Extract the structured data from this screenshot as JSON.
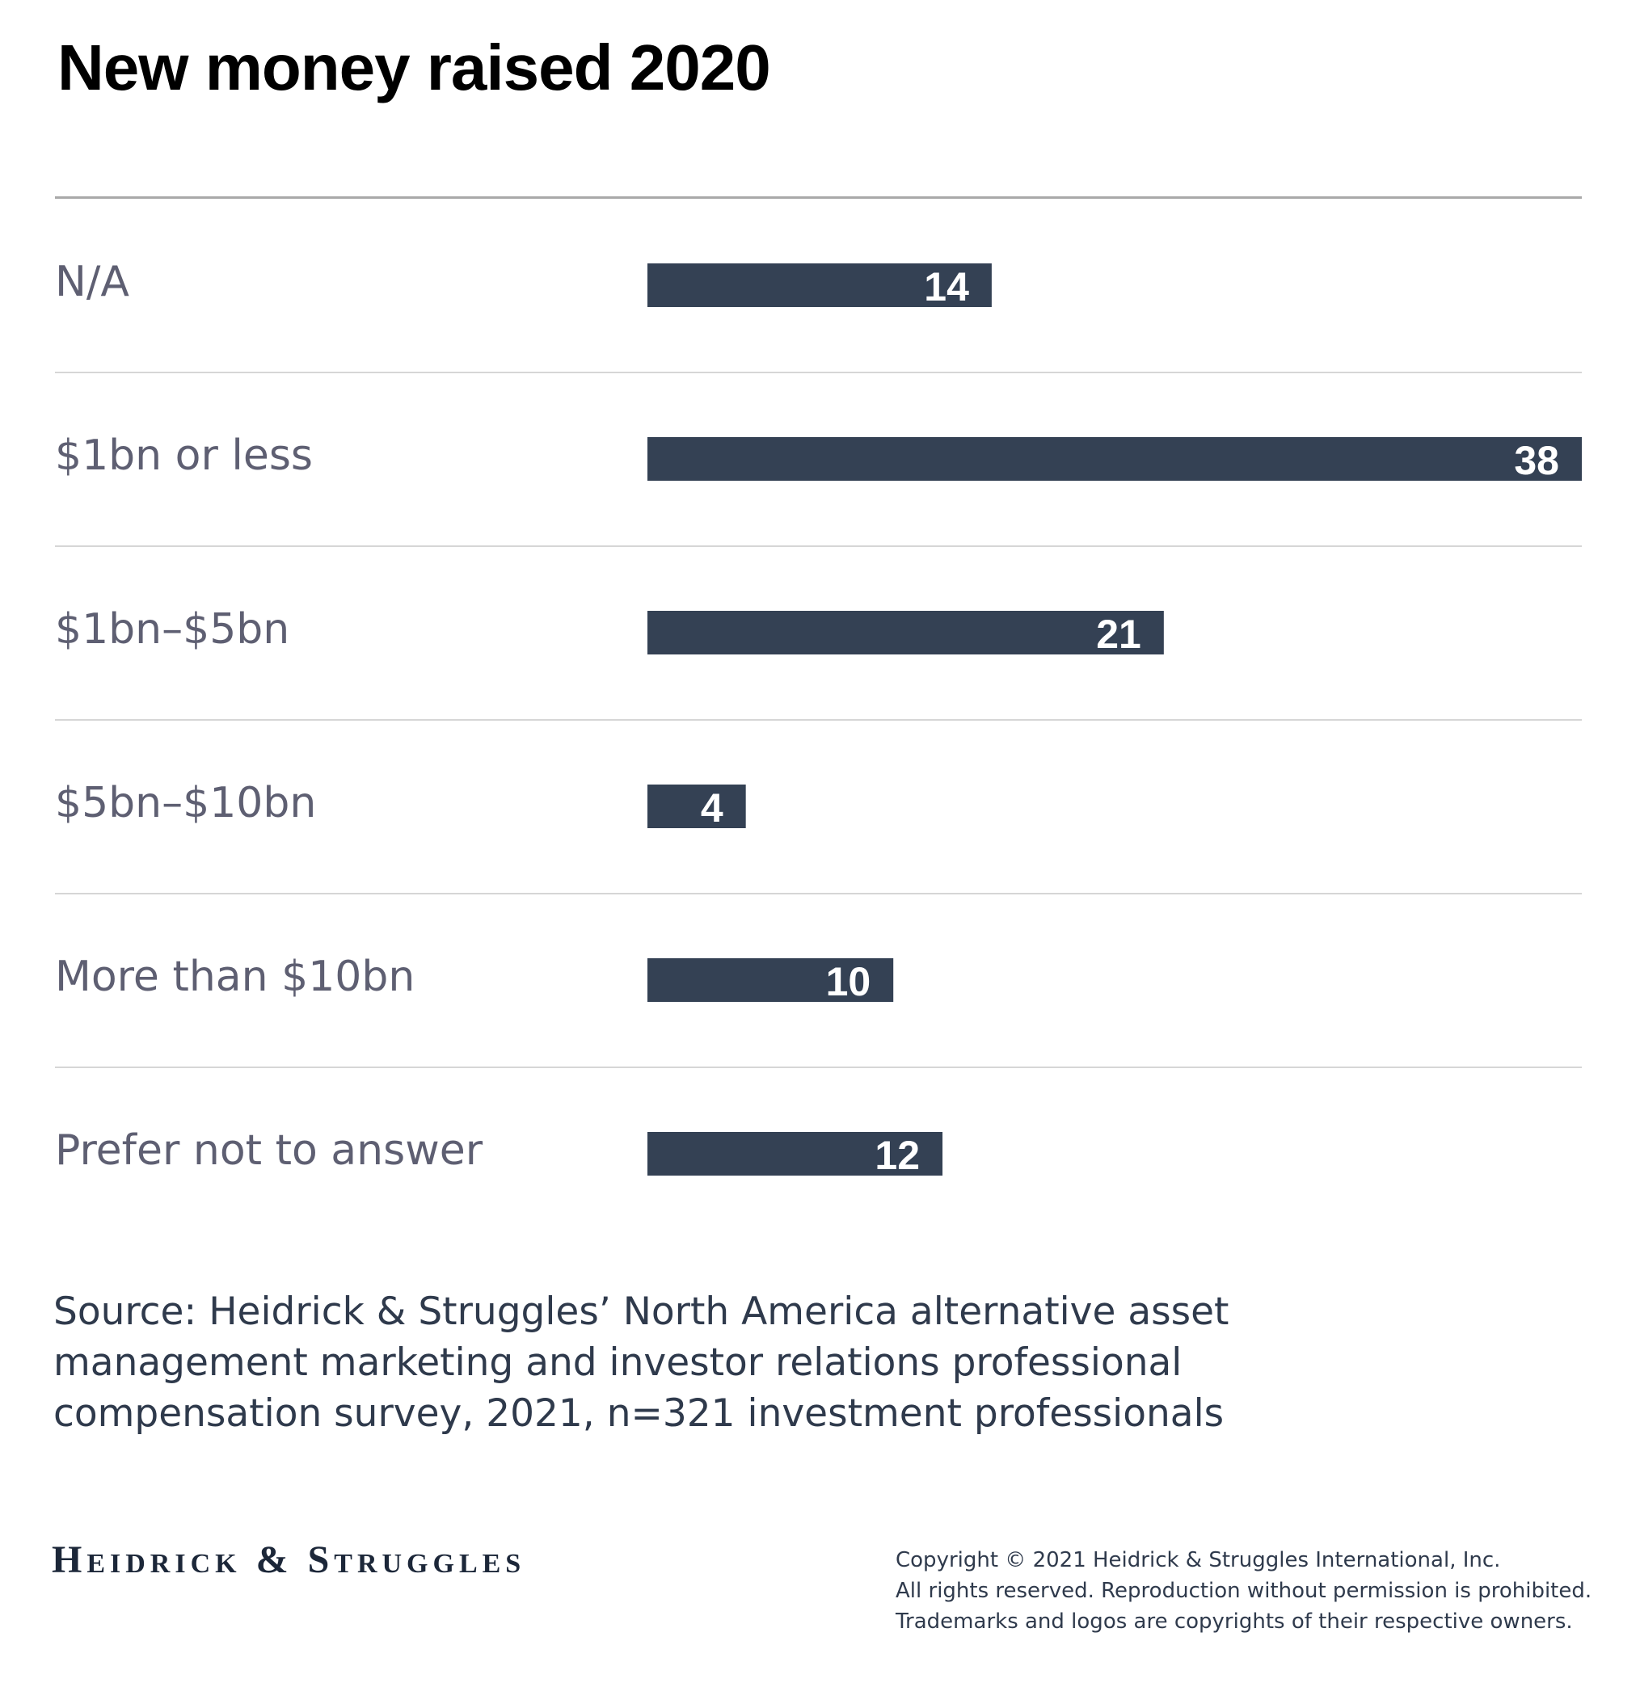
{
  "chart_data": {
    "type": "bar",
    "orientation": "horizontal",
    "title": "New money raised 2020",
    "categories": [
      "N/A",
      "$1bn or less",
      "$1bn–$5bn",
      "$5bn–$10bn",
      "More than $10bn",
      "Prefer not to answer"
    ],
    "values": [
      14,
      38,
      21,
      4,
      10,
      12
    ],
    "xlim": [
      0,
      38
    ],
    "bar_color": "#344154",
    "label_color": "#5e5f72",
    "value_label_color": "#ffffff",
    "grid": false,
    "legend": "none"
  },
  "source": {
    "lines": [
      "Source: Heidrick & Struggles’ North America alternative asset",
      "management marketing and investor relations professional",
      "compensation survey, 2021, n=321 investment professionals"
    ]
  },
  "footer": {
    "logo_text": "Heidrick & Struggles",
    "copyright_lines": [
      "Copyright © 2021 Heidrick & Struggles International, Inc.",
      "All rights reserved. Reproduction without permission is prohibited.",
      "Trademarks and logos are copyrights of their respective owners."
    ]
  }
}
